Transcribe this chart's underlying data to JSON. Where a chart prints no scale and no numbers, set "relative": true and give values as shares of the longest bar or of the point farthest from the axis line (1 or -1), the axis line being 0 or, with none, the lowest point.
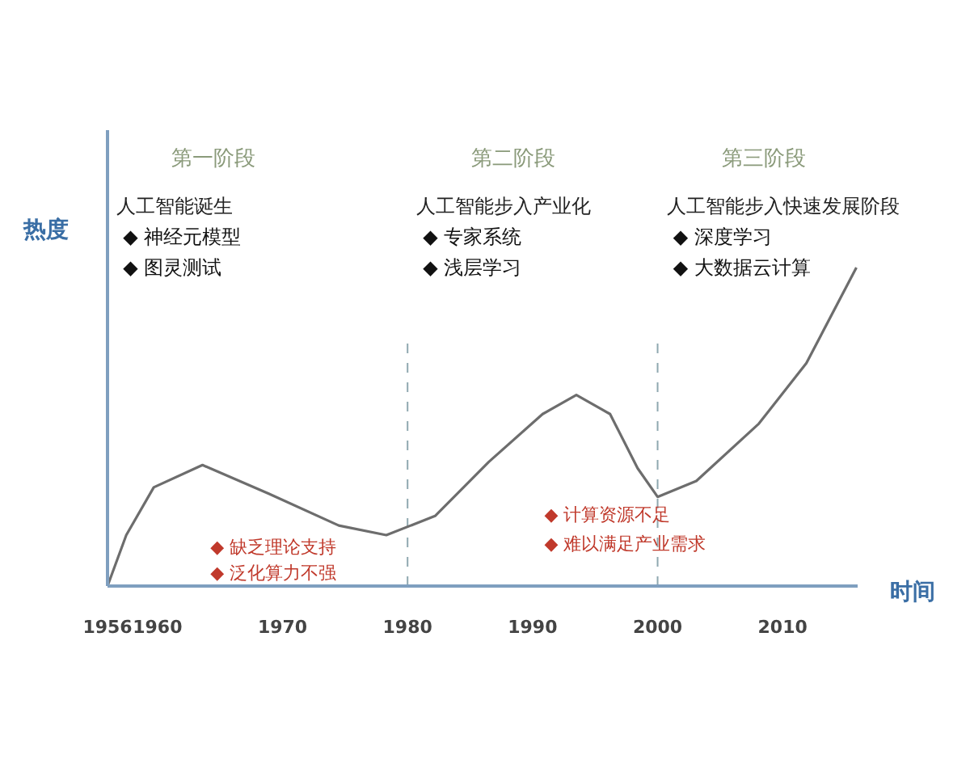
{
  "chart_data": {
    "type": "line",
    "relative": true,
    "ylabel": "热度",
    "xlabel": "时间",
    "tick_labels": "x",
    "line_style": "solid",
    "x": [
      1956,
      1957.5,
      1959.7,
      1963.6,
      1968.9,
      1974.5,
      1978.3,
      1982.2,
      1986.5,
      1990.8,
      1993.5,
      1996.2,
      1998.4,
      2000,
      2003.1,
      2008.1,
      2011.9,
      2015.9
    ],
    "series": [
      {
        "color": "#6d6d6d",
        "values": [
          0,
          0.16,
          0.31,
          0.38,
          0.29,
          0.19,
          0.16,
          0.22,
          0.39,
          0.54,
          0.6,
          0.54,
          0.37,
          0.28,
          0.33,
          0.51,
          0.7,
          1
        ]
      }
    ],
    "xlim": [
      1956,
      2016
    ],
    "xticks": [
      1956,
      1960,
      1970,
      1980,
      1990,
      2000,
      2010
    ],
    "ref_lines": [
      {
        "axis": "x",
        "value": 1980,
        "color": "#8fa8b0",
        "line_style": "dashed"
      },
      {
        "axis": "x",
        "value": 2000,
        "color": "#8fa8b0",
        "line_style": "dashed"
      }
    ],
    "annotations": [
      "第一阶段",
      "人工智能诞生",
      "◆   神经元模型",
      "◆   图灵测试",
      "第二阶段",
      "人工智能步入产业化",
      "◆   专家系统",
      "◆   浅层学习",
      "第三阶段",
      "人工智能步入快速发展阶段",
      "◆   深度学习",
      "◆   大数据云计算",
      "◆   缺乏理论支持",
      "◆   泛化算力不强",
      "◆   计算资源不足",
      "◆   难以满足产业需求"
    ]
  }
}
